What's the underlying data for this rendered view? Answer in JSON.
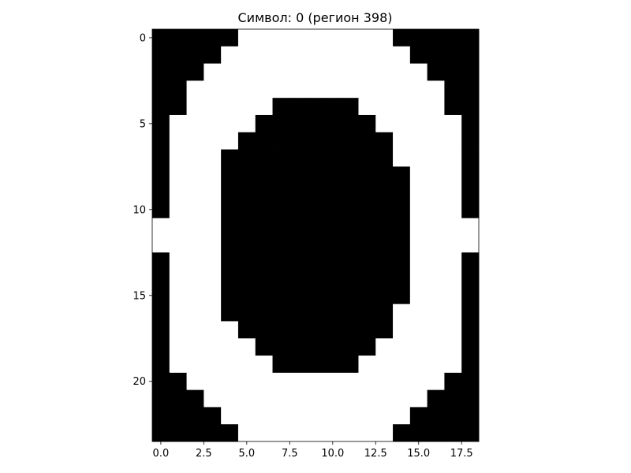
{
  "chart_data": {
    "type": "heatmap",
    "title": "Символ: 0 (регион 398)",
    "xlabel": "",
    "ylabel": "",
    "colormap": "gray",
    "colors": {
      "on": "#ffffff",
      "off": "#000000"
    },
    "xlim": [
      -0.5,
      18.5
    ],
    "ylim": [
      23.5,
      -0.5
    ],
    "x_ticks": [
      0.0,
      2.5,
      5.0,
      7.5,
      10.0,
      12.5,
      15.0,
      17.5
    ],
    "x_tick_labels": [
      "0.0",
      "2.5",
      "5.0",
      "7.5",
      "10.0",
      "12.5",
      "15.0",
      "17.5"
    ],
    "y_ticks": [
      0,
      5,
      10,
      15,
      20
    ],
    "y_tick_labels": [
      "0",
      "5",
      "10",
      "15",
      "20"
    ],
    "grid": false,
    "rows": [
      "0000011111111100000",
      "0000111111111110000",
      "0001111111111111000",
      "0011111111111111100",
      "0011111000001111100",
      "0111110000000111110",
      "0111100000000011110",
      "0111000000000011110",
      "0111000000000001110",
      "0111000000000001110",
      "0111000000000001110",
      "1111000000000001111",
      "1111000000000001111",
      "0111000000000001110",
      "0111000000000001110",
      "0111000000000001110",
      "0111000000000011110",
      "0111100000000011110",
      "0111110000000111110",
      "0111111000001111110",
      "0011111111111111100",
      "0001111111111111000",
      "0000111111111110000",
      "0000011111111100000"
    ]
  }
}
